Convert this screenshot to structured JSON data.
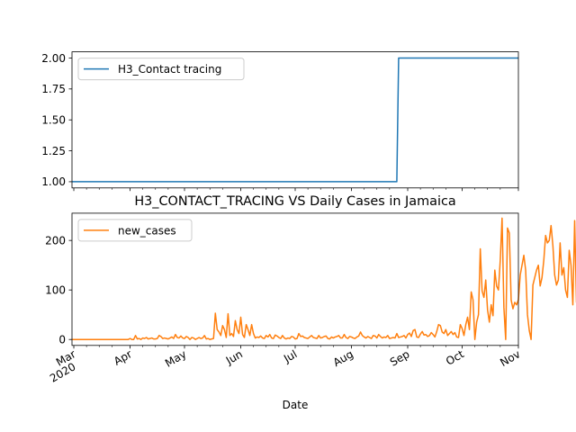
{
  "chart_data": [
    {
      "type": "line",
      "title": "",
      "xlabel": "",
      "ylabel": "",
      "x_range": [
        "2020-02-29",
        "2020-11-01"
      ],
      "ylim": [
        0.95,
        2.05
      ],
      "yticks": [
        "1.00",
        "1.25",
        "1.50",
        "1.75",
        "2.00"
      ],
      "ytick_values": [
        1.0,
        1.25,
        1.5,
        1.75,
        2.0
      ],
      "grid": false,
      "legend": "upper left",
      "series": [
        {
          "name": "H3_Contact tracing",
          "color": "#1f77b4",
          "points": [
            {
              "x": "2020-02-29",
              "y": 1
            },
            {
              "x": "2020-08-26",
              "y": 1
            },
            {
              "x": "2020-08-27",
              "y": 2
            },
            {
              "x": "2020-11-01",
              "y": 2
            }
          ]
        }
      ]
    },
    {
      "type": "line",
      "title": "H3_CONTACT_TRACING VS Daily Cases in Jamaica",
      "xlabel": "Date",
      "ylabel": "",
      "x_range": [
        "2020-02-29",
        "2020-11-01"
      ],
      "ylim": [
        -12,
        255
      ],
      "yticks": [
        "0",
        "100",
        "200"
      ],
      "ytick_values": [
        0,
        100,
        200
      ],
      "xticks": [
        {
          "date": "2020-03-01",
          "label": "Mar",
          "sublabel": "2020"
        },
        {
          "date": "2020-04-01",
          "label": "Apr",
          "sublabel": ""
        },
        {
          "date": "2020-05-01",
          "label": "May",
          "sublabel": ""
        },
        {
          "date": "2020-06-01",
          "label": "Jun",
          "sublabel": ""
        },
        {
          "date": "2020-07-01",
          "label": "Jul",
          "sublabel": ""
        },
        {
          "date": "2020-08-01",
          "label": "Aug",
          "sublabel": ""
        },
        {
          "date": "2020-09-01",
          "label": "Sep",
          "sublabel": ""
        },
        {
          "date": "2020-10-01",
          "label": "Oct",
          "sublabel": ""
        },
        {
          "date": "2020-11-01",
          "label": "Nov",
          "sublabel": ""
        }
      ],
      "grid": false,
      "legend": "upper left",
      "series": [
        {
          "name": "new_cases",
          "color": "#ff7f0e",
          "start_date": "2020-02-29",
          "values": [
            0,
            0,
            0,
            0,
            0,
            0,
            0,
            0,
            0,
            0,
            0,
            0,
            0,
            0,
            0,
            0,
            0,
            0,
            0,
            0,
            0,
            0,
            0,
            0,
            0,
            0,
            0,
            0,
            0,
            0,
            0,
            0,
            2,
            0,
            0,
            8,
            1,
            2,
            0,
            3,
            2,
            4,
            1,
            2,
            3,
            1,
            1,
            2,
            8,
            6,
            2,
            3,
            2,
            1,
            3,
            5,
            2,
            10,
            4,
            3,
            7,
            3,
            2,
            6,
            4,
            0,
            4,
            3,
            0,
            2,
            4,
            2,
            3,
            8,
            1,
            2,
            0,
            1,
            2,
            53,
            20,
            15,
            8,
            28,
            20,
            4,
            52,
            8,
            12,
            6,
            38,
            20,
            12,
            45,
            10,
            4,
            30,
            20,
            8,
            30,
            12,
            3,
            5,
            4,
            7,
            3,
            2,
            8,
            5,
            10,
            3,
            2,
            9,
            7,
            4,
            2,
            8,
            3,
            1,
            3,
            2,
            6,
            5,
            1,
            2,
            12,
            6,
            7,
            4,
            3,
            2,
            5,
            8,
            4,
            3,
            2,
            8,
            3,
            4,
            6,
            7,
            2,
            1,
            5,
            3,
            5,
            6,
            8,
            3,
            3,
            10,
            4,
            2,
            6,
            5,
            3,
            2,
            5,
            7,
            15,
            8,
            5,
            3,
            6,
            4,
            2,
            8,
            7,
            3,
            10,
            6,
            3,
            5,
            4,
            8,
            2,
            3,
            4,
            3,
            12,
            4,
            5,
            6,
            8,
            3,
            10,
            13,
            6,
            18,
            20,
            5,
            4,
            11,
            16,
            9,
            10,
            6,
            8,
            14,
            10,
            5,
            16,
            30,
            28,
            15,
            12,
            20,
            8,
            12,
            16,
            10,
            14,
            5,
            4,
            30,
            22,
            8,
            30,
            45,
            20,
            96,
            80,
            0,
            35,
            50,
            183,
            98,
            85,
            120,
            60,
            35,
            70,
            48,
            140,
            108,
            100,
            160,
            245,
            65,
            0,
            225,
            215,
            80,
            62,
            75,
            70,
            80,
            130,
            150,
            170,
            140,
            50,
            18,
            0,
            110,
            125,
            140,
            150,
            108,
            125,
            160,
            210,
            195,
            200,
            230,
            190,
            130,
            110,
            120,
            195,
            130,
            145,
            100,
            85,
            180,
            150,
            70,
            240,
            75,
            72,
            150,
            90,
            100,
            120,
            100,
            75,
            80,
            70,
            85,
            196,
            180,
            140,
            100,
            80,
            70,
            75,
            65,
            70,
            80,
            90,
            50,
            55,
            48,
            90,
            155,
            60,
            40,
            35,
            45,
            38,
            40,
            60,
            70,
            82,
            84,
            92,
            60,
            40
          ]
        }
      ]
    }
  ]
}
